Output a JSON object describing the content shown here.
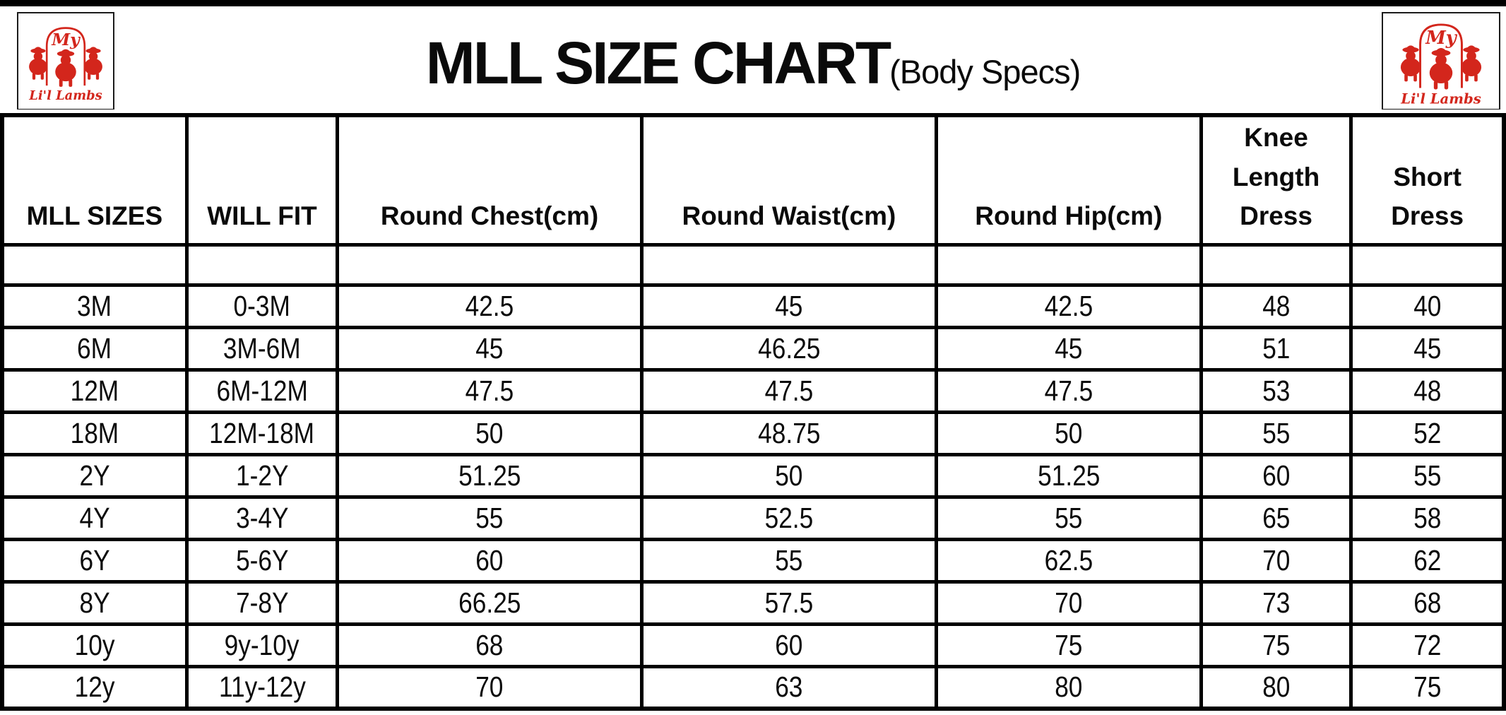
{
  "title": {
    "main": "MLL SIZE CHART",
    "sub": "(Body Specs)"
  },
  "logo": {
    "top_text": "My",
    "bottom_text": "Li'l Lambs",
    "color": "#d3261c"
  },
  "colors": {
    "background": "#ffffff",
    "border": "#000000",
    "logo_red": "#d3261c",
    "text": "#0a0a0a"
  },
  "chart_data": {
    "type": "table",
    "title": "MLL SIZE CHART (Body Specs)",
    "columns": [
      "MLL SIZES",
      "WILL FIT",
      "Round Chest(cm)",
      "Round Waist(cm)",
      "Round Hip(cm)",
      "Knee Length Dress",
      "Short Dress"
    ],
    "rows": [
      [
        "3M",
        "0-3M",
        "42.5",
        "45",
        "42.5",
        "48",
        "40"
      ],
      [
        "6M",
        "3M-6M",
        "45",
        "46.25",
        "45",
        "51",
        "45"
      ],
      [
        "12M",
        "6M-12M",
        "47.5",
        "47.5",
        "47.5",
        "53",
        "48"
      ],
      [
        "18M",
        "12M-18M",
        "50",
        "48.75",
        "50",
        "55",
        "52"
      ],
      [
        "2Y",
        "1-2Y",
        "51.25",
        "50",
        "51.25",
        "60",
        "55"
      ],
      [
        "4Y",
        "3-4Y",
        "55",
        "52.5",
        "55",
        "65",
        "58"
      ],
      [
        "6Y",
        "5-6Y",
        "60",
        "55",
        "62.5",
        "70",
        "62"
      ],
      [
        "8Y",
        "7-8Y",
        "66.25",
        "57.5",
        "70",
        "73",
        "68"
      ],
      [
        "10y",
        "9y-10y",
        "68",
        "60",
        "75",
        "75",
        "72"
      ],
      [
        "12y",
        "11y-12y",
        "70",
        "63",
        "80",
        "80",
        "75"
      ]
    ]
  }
}
